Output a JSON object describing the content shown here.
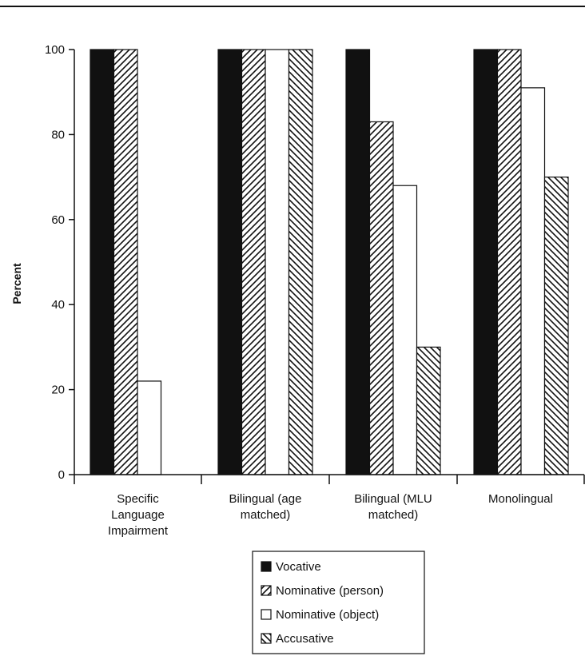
{
  "chart_data": {
    "type": "bar",
    "title": "",
    "xlabel": "",
    "ylabel": "Percent",
    "ylim": [
      0,
      100
    ],
    "yticks": [
      0,
      20,
      40,
      60,
      80,
      100
    ],
    "grid": false,
    "legend_position": "bottom",
    "categories": [
      [
        "Specific",
        "Language",
        "Impairment"
      ],
      [
        "Bilingual (age",
        "matched)"
      ],
      [
        "Bilingual (MLU",
        "matched)"
      ],
      [
        "Monolingual"
      ]
    ],
    "series": [
      {
        "name": "Vocative",
        "pattern": "solid",
        "values": [
          100,
          100,
          100,
          100
        ]
      },
      {
        "name": "Nominative (person)",
        "pattern": "diag-up",
        "values": [
          100,
          100,
          83,
          100
        ]
      },
      {
        "name": "Nominative (object)",
        "pattern": "empty",
        "values": [
          22,
          100,
          68,
          91
        ]
      },
      {
        "name": "Accusative",
        "pattern": "diag-down",
        "values": [
          0,
          100,
          30,
          70
        ]
      }
    ],
    "colors": {
      "ink": "#111111",
      "background": "#ffffff"
    }
  }
}
